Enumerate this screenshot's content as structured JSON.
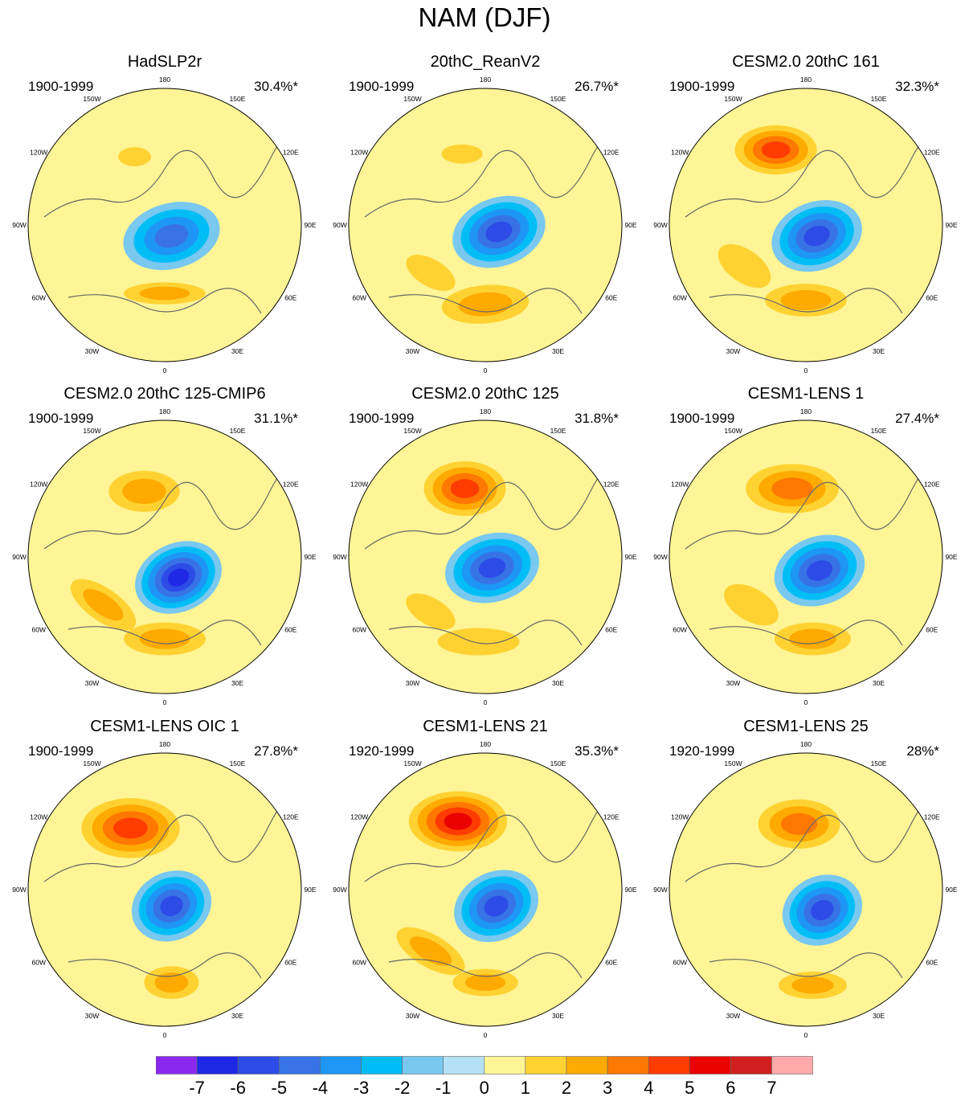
{
  "chart_data": {
    "type": "heatmap",
    "title": "NAM (DJF)",
    "projection": "north polar stereographic",
    "longitude_labels": [
      "180",
      "150E",
      "120E",
      "90E",
      "60E",
      "30E",
      "0",
      "30W",
      "60W",
      "90W",
      "120W",
      "150W"
    ],
    "colorbar": {
      "labels": [
        "-7",
        "-6",
        "-5",
        "-4",
        "-3",
        "-2",
        "-1",
        "0",
        "1",
        "2",
        "3",
        "4",
        "5",
        "6",
        "7"
      ],
      "colors": [
        "#8b28f0",
        "#1e28e6",
        "#2d4be6",
        "#3773e6",
        "#1e96f5",
        "#00bef5",
        "#78c8f0",
        "#b4e1f5",
        "#fff596",
        "#ffd232",
        "#ffaa00",
        "#ff7800",
        "#ff3c00",
        "#eb0000",
        "#d21e1e",
        "#ffaaaa"
      ]
    },
    "panels": [
      {
        "title": "HadSLP2r",
        "period": "1900-1999",
        "variance": "30.4%*",
        "features": [
          {
            "cx": 0.05,
            "cy": 0.08,
            "rx": 0.36,
            "ry": 0.24,
            "rot": -15,
            "v": -4
          },
          {
            "cx": -0.22,
            "cy": -0.5,
            "rx": 0.12,
            "ry": 0.07,
            "rot": 0,
            "v": 1
          },
          {
            "cx": 0.0,
            "cy": 0.5,
            "rx": 0.3,
            "ry": 0.08,
            "rot": 0,
            "v": 2
          }
        ]
      },
      {
        "title": "20thC_ReanV2",
        "period": "1900-1999",
        "variance": "26.7%*",
        "features": [
          {
            "cx": 0.1,
            "cy": 0.05,
            "rx": 0.35,
            "ry": 0.25,
            "rot": -20,
            "v": -5
          },
          {
            "cx": -0.17,
            "cy": -0.52,
            "rx": 0.15,
            "ry": 0.07,
            "rot": 0,
            "v": 1
          },
          {
            "cx": 0.0,
            "cy": 0.58,
            "rx": 0.32,
            "ry": 0.14,
            "rot": -5,
            "v": 2
          },
          {
            "cx": -0.4,
            "cy": 0.35,
            "rx": 0.2,
            "ry": 0.1,
            "rot": 30,
            "v": 1
          }
        ]
      },
      {
        "title": "CESM2.0 20thC 161",
        "period": "1900-1999",
        "variance": "32.3%*",
        "features": [
          {
            "cx": 0.08,
            "cy": 0.08,
            "rx": 0.34,
            "ry": 0.25,
            "rot": -20,
            "v": -5
          },
          {
            "cx": -0.22,
            "cy": -0.55,
            "rx": 0.3,
            "ry": 0.18,
            "rot": 0,
            "v": 4
          },
          {
            "cx": 0.0,
            "cy": 0.55,
            "rx": 0.3,
            "ry": 0.12,
            "rot": 0,
            "v": 2
          },
          {
            "cx": -0.45,
            "cy": 0.3,
            "rx": 0.22,
            "ry": 0.12,
            "rot": 35,
            "v": 1
          }
        ]
      },
      {
        "title": "CESM2.0 20thC 125-CMIP6",
        "period": "1900-1999",
        "variance": "31.1%*",
        "features": [
          {
            "cx": 0.1,
            "cy": 0.15,
            "rx": 0.33,
            "ry": 0.25,
            "rot": -25,
            "v": -6
          },
          {
            "cx": -0.15,
            "cy": -0.48,
            "rx": 0.26,
            "ry": 0.15,
            "rot": 0,
            "v": 2
          },
          {
            "cx": 0.0,
            "cy": 0.6,
            "rx": 0.3,
            "ry": 0.12,
            "rot": 0,
            "v": 2
          },
          {
            "cx": -0.45,
            "cy": 0.35,
            "rx": 0.28,
            "ry": 0.12,
            "rot": 35,
            "v": 2
          }
        ]
      },
      {
        "title": "CESM2.0 20thC 125",
        "period": "1900-1999",
        "variance": "31.8%*",
        "features": [
          {
            "cx": 0.05,
            "cy": 0.08,
            "rx": 0.35,
            "ry": 0.25,
            "rot": -15,
            "v": -5
          },
          {
            "cx": -0.15,
            "cy": -0.5,
            "rx": 0.3,
            "ry": 0.2,
            "rot": 0,
            "v": 4
          },
          {
            "cx": -0.05,
            "cy": 0.62,
            "rx": 0.3,
            "ry": 0.1,
            "rot": 0,
            "v": 1
          },
          {
            "cx": -0.4,
            "cy": 0.4,
            "rx": 0.2,
            "ry": 0.1,
            "rot": 30,
            "v": 1
          }
        ]
      },
      {
        "title": "CESM1-LENS 1",
        "period": "1900-1999",
        "variance": "27.4%*",
        "features": [
          {
            "cx": 0.1,
            "cy": 0.1,
            "rx": 0.34,
            "ry": 0.25,
            "rot": -20,
            "v": -5
          },
          {
            "cx": -0.1,
            "cy": -0.5,
            "rx": 0.34,
            "ry": 0.18,
            "rot": 0,
            "v": 3
          },
          {
            "cx": 0.05,
            "cy": 0.6,
            "rx": 0.28,
            "ry": 0.12,
            "rot": 0,
            "v": 2
          },
          {
            "cx": -0.4,
            "cy": 0.35,
            "rx": 0.22,
            "ry": 0.12,
            "rot": 30,
            "v": 1
          }
        ]
      },
      {
        "title": "CESM1-LENS OIC 1",
        "period": "1900-1999",
        "variance": "27.8%*",
        "features": [
          {
            "cx": 0.05,
            "cy": 0.12,
            "rx": 0.3,
            "ry": 0.25,
            "rot": -25,
            "v": -5
          },
          {
            "cx": -0.25,
            "cy": -0.45,
            "rx": 0.36,
            "ry": 0.22,
            "rot": 0,
            "v": 4
          },
          {
            "cx": 0.05,
            "cy": 0.68,
            "rx": 0.2,
            "ry": 0.12,
            "rot": 0,
            "v": 2
          }
        ]
      },
      {
        "title": "CESM1-LENS 21",
        "period": "1920-1999",
        "variance": "35.3%*",
        "features": [
          {
            "cx": 0.08,
            "cy": 0.12,
            "rx": 0.32,
            "ry": 0.25,
            "rot": -25,
            "v": -5
          },
          {
            "cx": -0.2,
            "cy": -0.5,
            "rx": 0.36,
            "ry": 0.22,
            "rot": 0,
            "v": 5
          },
          {
            "cx": 0.0,
            "cy": 0.68,
            "rx": 0.24,
            "ry": 0.1,
            "rot": 0,
            "v": 2
          },
          {
            "cx": -0.4,
            "cy": 0.45,
            "rx": 0.28,
            "ry": 0.12,
            "rot": 30,
            "v": 2
          }
        ]
      },
      {
        "title": "CESM1-LENS 25",
        "period": "1920-1999",
        "variance": "28%*",
        "features": [
          {
            "cx": 0.12,
            "cy": 0.15,
            "rx": 0.3,
            "ry": 0.25,
            "rot": -25,
            "v": -5
          },
          {
            "cx": -0.05,
            "cy": -0.48,
            "rx": 0.3,
            "ry": 0.18,
            "rot": 0,
            "v": 3
          },
          {
            "cx": 0.05,
            "cy": 0.7,
            "rx": 0.25,
            "ry": 0.1,
            "rot": 0,
            "v": 2
          }
        ]
      }
    ]
  }
}
